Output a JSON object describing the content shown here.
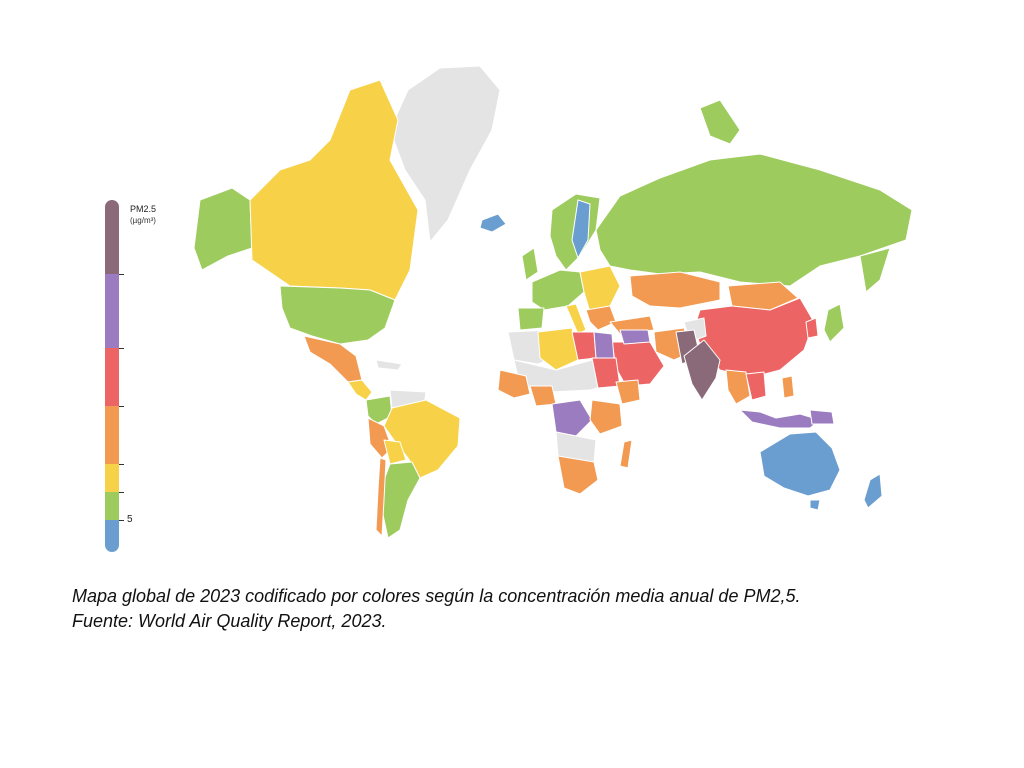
{
  "legend": {
    "title": "PM2.5",
    "unit": "(µg/m³)",
    "threshold_label": "5",
    "colors": [
      "#8a6a78",
      "#9b7cc0",
      "#ec6463",
      "#f29a52",
      "#f7d248",
      "#9dcb5d",
      "#6a9ed0"
    ]
  },
  "colors": {
    "no_data": "#e4e4e4",
    "blue": "#6a9ed0",
    "green": "#9dcb5d",
    "yellow": "#f7d248",
    "orange": "#f29a52",
    "red": "#ec6463",
    "purple": "#9b7cc0",
    "brown": "#8a6a78"
  },
  "caption": {
    "line1": "Mapa global de 2023 codificado por colores según la concentración media anual de PM2,5.",
    "line2": "Fuente: World Air Quality Report, 2023."
  }
}
